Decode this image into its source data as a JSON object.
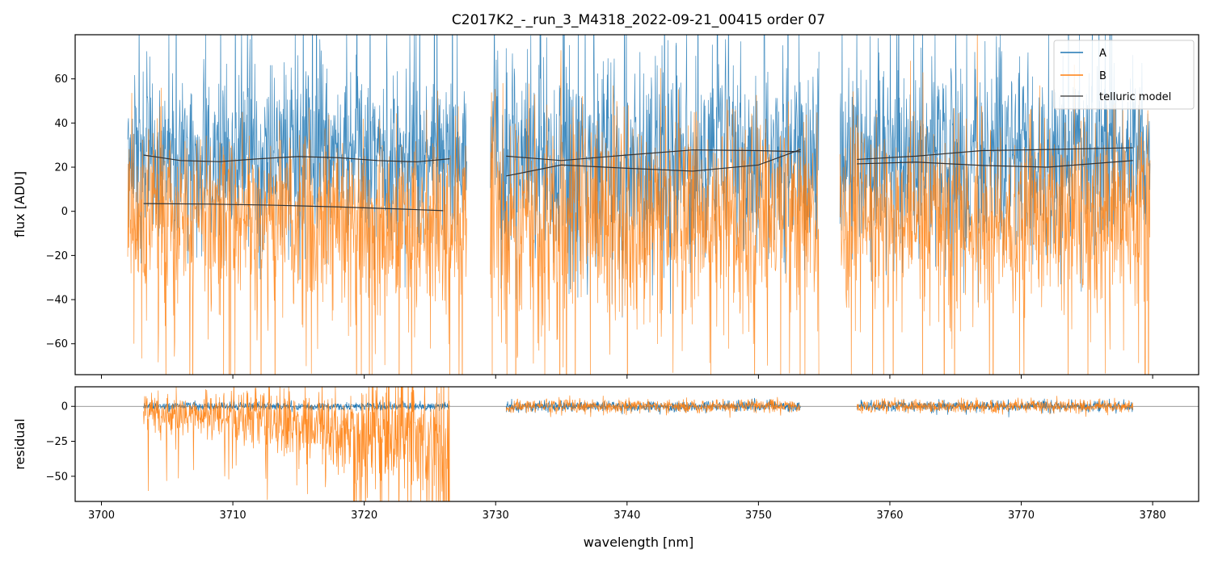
{
  "chart_data": {
    "type": "line",
    "title": "C2017K2_-_run_3_M4318_2022-09-21_00415  order 07",
    "xlabel": "wavelength [nm]",
    "xlim": [
      3698,
      3783.5
    ],
    "xticks": [
      3700,
      3710,
      3720,
      3730,
      3740,
      3750,
      3760,
      3770,
      3780
    ],
    "colors": {
      "A": "#1f77b4",
      "B": "#ff7f0e",
      "model": "#333333"
    },
    "top_panel": {
      "ylabel": "flux [ADU]",
      "ylim": [
        -74,
        80
      ],
      "yticks": [
        -60,
        -40,
        -20,
        0,
        20,
        40,
        60
      ],
      "segments": [
        {
          "x_range": [
            3702.0,
            3727.8
          ],
          "A_baseline": [
            24,
            23,
            23,
            24,
            24,
            23,
            22
          ],
          "B_baseline": [
            3,
            2,
            0,
            -2,
            -4,
            -6,
            -7
          ],
          "A_noise": 20,
          "B_noise": 20
        },
        {
          "x_range": [
            3729.6,
            3754.6
          ],
          "A_baseline": [
            20,
            20,
            21,
            22,
            22,
            21,
            22
          ],
          "B_baseline": [
            0,
            0,
            0,
            0,
            0,
            0,
            0
          ],
          "A_noise": 24,
          "B_noise": 24
        },
        {
          "x_range": [
            3756.2,
            3779.8
          ],
          "A_baseline": [
            22,
            23,
            23,
            24,
            24,
            24,
            24
          ],
          "B_baseline": [
            0,
            0,
            0,
            0,
            0,
            0,
            0
          ],
          "A_noise": 22,
          "B_noise": 22
        }
      ],
      "telluric_models": [
        {
          "x": [
            3703.2,
            3706.0,
            3709.0,
            3712.0,
            3715.0,
            3718.0,
            3721.0,
            3724.0,
            3726.5
          ],
          "y": [
            25.5,
            23.0,
            22.5,
            23.8,
            24.8,
            24.3,
            23.0,
            22.4,
            23.8
          ]
        },
        {
          "x": [
            3703.2,
            3708.0,
            3713.0,
            3718.0,
            3723.0,
            3726.0
          ],
          "y": [
            3.5,
            3.3,
            2.8,
            2.0,
            1.0,
            0.3
          ]
        },
        {
          "x": [
            3730.8,
            3735.0,
            3740.0,
            3745.0,
            3750.0,
            3753.2
          ],
          "y": [
            25.0,
            23.0,
            25.5,
            27.8,
            27.5,
            27.0
          ]
        },
        {
          "x": [
            3730.8,
            3735.0,
            3740.0,
            3745.0,
            3750.0,
            3753.2
          ],
          "y": [
            16.0,
            21.0,
            19.5,
            18.2,
            21.0,
            28.0
          ]
        },
        {
          "x": [
            3757.5,
            3762.0,
            3767.0,
            3772.0,
            3778.5
          ],
          "y": [
            23.5,
            25.0,
            27.5,
            28.0,
            28.8
          ]
        },
        {
          "x": [
            3757.5,
            3762.0,
            3767.0,
            3772.0,
            3778.5
          ],
          "y": [
            21.5,
            22.3,
            20.8,
            20.0,
            23.0
          ]
        }
      ],
      "legend": {
        "placement": "top-right",
        "entries": [
          "A",
          "B",
          "telluric model"
        ]
      }
    },
    "bottom_panel": {
      "ylabel": "residual",
      "ylim": [
        -68,
        14
      ],
      "yticks": [
        -50,
        -25,
        0
      ],
      "zero_line": 0,
      "segments": [
        {
          "x_range": [
            3703.2,
            3726.5
          ],
          "A_noise": 1.5,
          "B_start": -5,
          "B_end": -30,
          "B_noise_start": 8,
          "B_noise_end": 30
        },
        {
          "x_range": [
            3730.8,
            3753.2
          ],
          "A_noise": 2,
          "B_start": 0,
          "B_end": 0,
          "B_noise_start": 2.5,
          "B_noise_end": 2.5
        },
        {
          "x_range": [
            3757.5,
            3778.5
          ],
          "A_noise": 2,
          "B_start": 0,
          "B_end": 0,
          "B_noise_start": 2.5,
          "B_noise_end": 2.5
        }
      ]
    }
  }
}
